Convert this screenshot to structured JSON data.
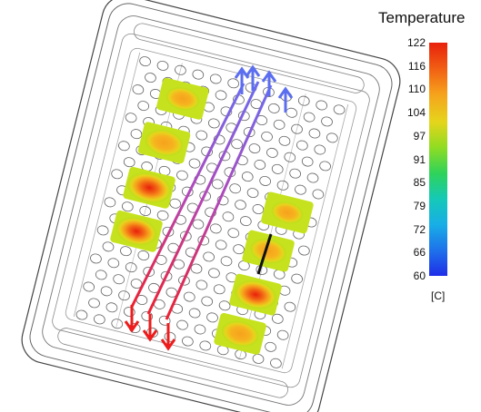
{
  "legend": {
    "title": "Temperature",
    "unit": "[C]",
    "ticks": [
      "122",
      "116",
      "110",
      "104",
      "97",
      "91",
      "85",
      "79",
      "72",
      "66",
      "60"
    ],
    "colors": [
      "#e8200c",
      "#f26414",
      "#f6a21c",
      "#e5d51c",
      "#b7e01c",
      "#5fd430",
      "#1fcf6f",
      "#15c9b7",
      "#18aee6",
      "#1e72ea",
      "#1f2ee8"
    ]
  },
  "hotspots": [
    {
      "name": "chip-top-left-1",
      "level": 0.72
    },
    {
      "name": "chip-left-2",
      "level": 0.82
    },
    {
      "name": "chip-left-3",
      "level": 0.95
    },
    {
      "name": "chip-left-4",
      "level": 0.88
    },
    {
      "name": "chip-right-1",
      "level": 0.68
    },
    {
      "name": "chip-right-2",
      "level": 0.78
    },
    {
      "name": "chip-right-3",
      "level": 0.9
    },
    {
      "name": "chip-right-4",
      "level": 0.8
    }
  ]
}
